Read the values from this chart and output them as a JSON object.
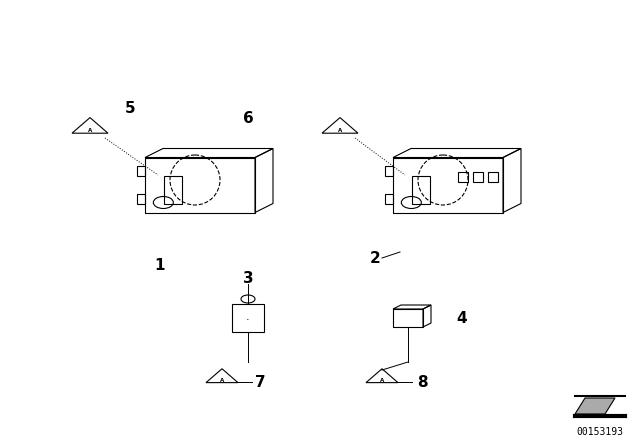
{
  "title": "",
  "background_color": "#ffffff",
  "part_numbers": [
    "1",
    "2",
    "3",
    "4",
    "5",
    "6",
    "7",
    "8"
  ],
  "watermark": "00153193",
  "fig_width": 6.4,
  "fig_height": 4.48,
  "dpi": 100
}
